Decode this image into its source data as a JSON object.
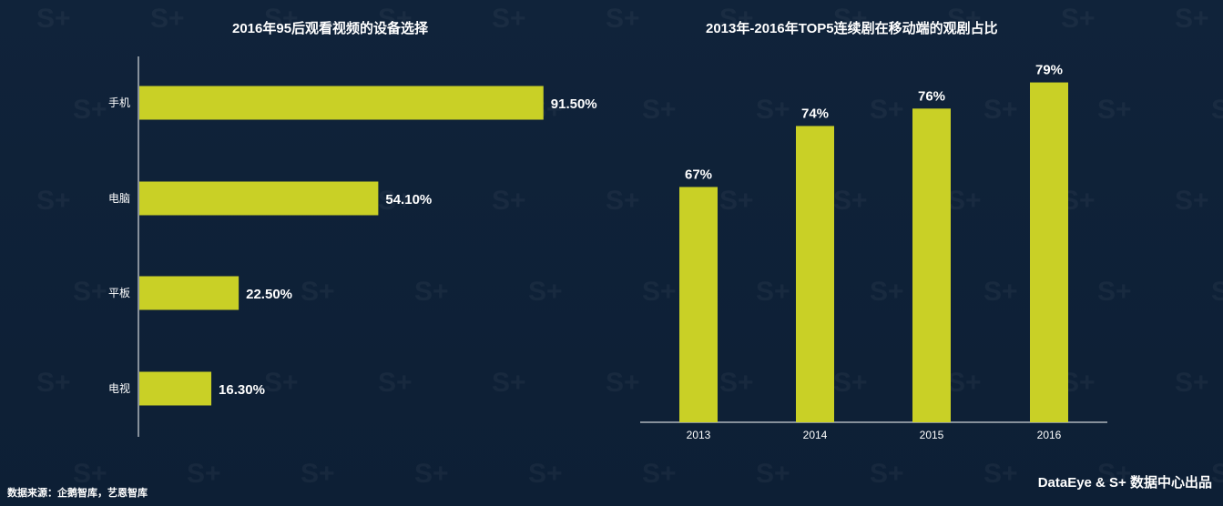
{
  "colors": {
    "background": "#0f2238",
    "bar": "#c9d026",
    "text": "#ffffff",
    "axis": "#ffffff"
  },
  "chart_data": [
    {
      "type": "bar",
      "orientation": "horizontal",
      "title": "2016年95后观看视频的设备选择",
      "categories": [
        "手机",
        "电脑",
        "平板",
        "电视"
      ],
      "values": [
        91.5,
        54.1,
        22.5,
        16.3
      ],
      "data_labels": [
        "91.50%",
        "54.10%",
        "22.50%",
        "16.30%"
      ],
      "xlim": [
        0,
        100
      ],
      "grid": false,
      "legend": "none"
    },
    {
      "type": "bar",
      "orientation": "vertical",
      "title": "2013年-2016年TOP5连续剧在移动端的观剧占比",
      "categories": [
        "2013",
        "2014",
        "2015",
        "2016"
      ],
      "values": [
        67,
        74,
        76,
        79
      ],
      "data_labels": [
        "67%",
        "74%",
        "76%",
        "79%"
      ],
      "ylim": [
        40,
        80
      ],
      "grid": false,
      "legend": "none"
    }
  ],
  "footer": {
    "source": "数据来源：企鹅智库，艺恩智库",
    "brand": "DataEye & S+ 数据中心出品"
  }
}
